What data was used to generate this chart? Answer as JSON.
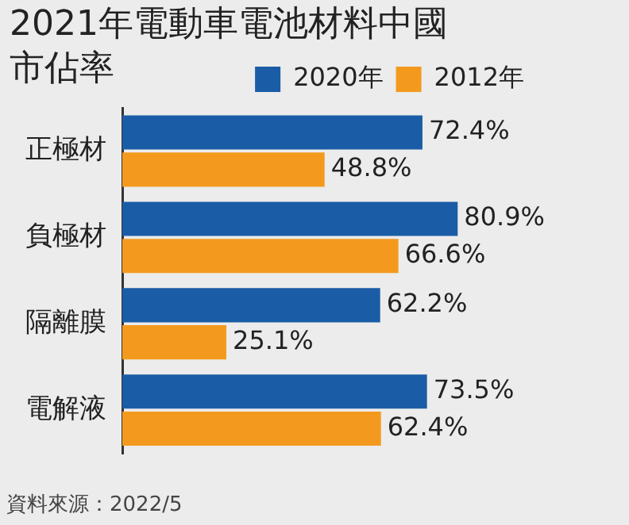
{
  "chart_data": {
    "type": "bar",
    "orientation": "horizontal",
    "title": "2021年電動車電池材料中國市佔率",
    "categories": [
      "正極材",
      "負極材",
      "隔離膜",
      "電解液"
    ],
    "series": [
      {
        "name": "2020年",
        "color": "#1a5da6",
        "values": [
          72.4,
          80.9,
          62.2,
          73.5
        ],
        "value_labels": [
          "72.4%",
          "80.9%",
          "62.2%",
          "73.5%"
        ]
      },
      {
        "name": "2012年",
        "color": "#f39a1e",
        "values": [
          48.8,
          66.6,
          25.1,
          62.4
        ],
        "value_labels": [
          "48.8%",
          "66.6%",
          "25.1%",
          "62.4%"
        ]
      }
    ],
    "tick_labels": "y",
    "legend": "top right",
    "annotations": [
      "資料來源：2022/5"
    ]
  }
}
